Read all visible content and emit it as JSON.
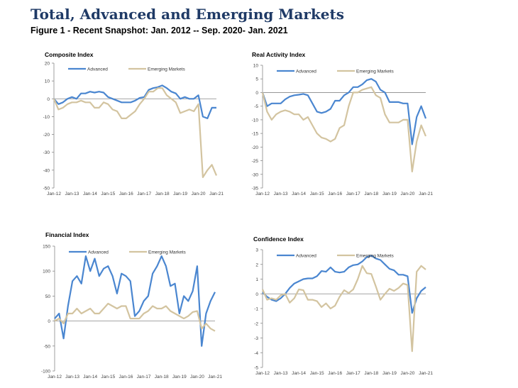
{
  "title": "Total, Advanced and Emerging Markets",
  "subtitle": "Figure 1 - Recent Snapshot: Jan. 2012 -- Sep. 2020- Jan. 2021",
  "colors": {
    "Advanced": "#4a86d0",
    "Emerging Markets": "#d3c4a0"
  },
  "chart_data": [
    {
      "type": "line",
      "title": "Composite Index",
      "x": [
        "2012-01",
        "2012-04",
        "2012-07",
        "2012-10",
        "2013-01",
        "2013-04",
        "2013-07",
        "2013-10",
        "2014-01",
        "2014-04",
        "2014-07",
        "2014-10",
        "2015-01",
        "2015-04",
        "2015-07",
        "2015-10",
        "2016-01",
        "2016-04",
        "2016-07",
        "2016-10",
        "2017-01",
        "2017-04",
        "2017-07",
        "2017-10",
        "2018-01",
        "2018-04",
        "2018-07",
        "2018-10",
        "2019-01",
        "2019-04",
        "2019-07",
        "2019-10",
        "2020-01",
        "2020-04",
        "2020-07",
        "2020-10",
        "2021-01"
      ],
      "xticks": [
        "Jan-12",
        "Jan-13",
        "Jan-14",
        "Jan-15",
        "Jan-16",
        "Jan-17",
        "Jan-18",
        "Jan-19",
        "Jan-20",
        "Jan-21"
      ],
      "yticks": [
        20,
        10,
        0,
        -10,
        -20,
        -30,
        -40,
        -50
      ],
      "ylim": [
        -50,
        20
      ],
      "legend": "top",
      "series": [
        {
          "name": "Advanced",
          "values": [
            0,
            -3,
            -2,
            0,
            1,
            0,
            3,
            3,
            4,
            3.5,
            4,
            3.5,
            1,
            0,
            -1,
            -2,
            -2,
            -2,
            -1,
            0.5,
            1,
            5,
            6,
            6.5,
            7.5,
            6,
            4,
            3,
            0,
            1,
            0,
            0,
            2,
            -10,
            -11,
            -5,
            -5
          ]
        },
        {
          "name": "Emerging Markets",
          "values": [
            0,
            -6,
            -5,
            -3,
            -2,
            -2,
            -1,
            -2,
            -2,
            -5,
            -5,
            -2,
            -3,
            -6,
            -7,
            -11,
            -11,
            -9,
            -7,
            -3,
            0,
            4,
            4,
            6,
            6,
            2,
            0,
            -2,
            -8,
            -7,
            -6,
            -7,
            -3,
            -44,
            -40,
            -37,
            -43
          ]
        }
      ]
    },
    {
      "type": "line",
      "title": "Real Activity Index",
      "x": [
        "2012-01",
        "2012-04",
        "2012-07",
        "2012-10",
        "2013-01",
        "2013-04",
        "2013-07",
        "2013-10",
        "2014-01",
        "2014-04",
        "2014-07",
        "2014-10",
        "2015-01",
        "2015-04",
        "2015-07",
        "2015-10",
        "2016-01",
        "2016-04",
        "2016-07",
        "2016-10",
        "2017-01",
        "2017-04",
        "2017-07",
        "2017-10",
        "2018-01",
        "2018-04",
        "2018-07",
        "2018-10",
        "2019-01",
        "2019-04",
        "2019-07",
        "2019-10",
        "2020-01",
        "2020-04",
        "2020-07",
        "2020-10",
        "2021-01"
      ],
      "xticks": [
        "Jan-12",
        "Jan-13",
        "Jan-14",
        "Jan-15",
        "Jan-16",
        "Jan-17",
        "Jan-18",
        "Jan-19",
        "Jan-20",
        "Jan-21"
      ],
      "yticks": [
        10,
        5,
        0,
        -5,
        -10,
        -15,
        -20,
        -25,
        -30,
        -35
      ],
      "ylim": [
        -35,
        10
      ],
      "legend": "top",
      "series": [
        {
          "name": "Advanced",
          "values": [
            0,
            -5,
            -4,
            -4,
            -4,
            -2.5,
            -1.5,
            -1,
            -0.8,
            -0.5,
            -1,
            -4,
            -7,
            -7.5,
            -7,
            -6,
            -3,
            -3,
            -1,
            0,
            2,
            2,
            3,
            4.5,
            5,
            4,
            1,
            0,
            -3.5,
            -3.5,
            -3.5,
            -4,
            -4,
            -19,
            -9,
            -5,
            -9.5
          ]
        },
        {
          "name": "Emerging Markets",
          "values": [
            0,
            -7,
            -10,
            -8,
            -7,
            -6.5,
            -7,
            -8,
            -8,
            -10,
            -9,
            -12,
            -15,
            -16.5,
            -17,
            -18,
            -17,
            -13,
            -12,
            -5,
            0,
            0,
            1,
            1.5,
            2,
            -1,
            -2,
            -8,
            -11,
            -11,
            -11,
            -10,
            -10,
            -29,
            -18,
            -12,
            -16
          ]
        }
      ]
    },
    {
      "type": "line",
      "title": "Financial Index",
      "x": [
        "2012-01",
        "2012-04",
        "2012-07",
        "2012-10",
        "2013-01",
        "2013-04",
        "2013-07",
        "2013-10",
        "2014-01",
        "2014-04",
        "2014-07",
        "2014-10",
        "2015-01",
        "2015-04",
        "2015-07",
        "2015-10",
        "2016-01",
        "2016-04",
        "2016-07",
        "2016-10",
        "2017-01",
        "2017-04",
        "2017-07",
        "2017-10",
        "2018-01",
        "2018-04",
        "2018-07",
        "2018-10",
        "2019-01",
        "2019-04",
        "2019-07",
        "2019-10",
        "2020-01",
        "2020-04",
        "2020-07",
        "2020-10",
        "2021-01"
      ],
      "xticks": [
        "Jan-12",
        "Jan-13",
        "Jan-14",
        "Jan-15",
        "Jan-16",
        "Jan-17",
        "Jan-18",
        "Jan-19",
        "Jan-20",
        "Jan-21"
      ],
      "yticks": [
        150,
        100,
        50,
        0,
        -50,
        -100
      ],
      "ylim": [
        -100,
        150
      ],
      "legend": "top",
      "series": [
        {
          "name": "Advanced",
          "values": [
            5,
            15,
            -35,
            30,
            80,
            90,
            75,
            130,
            100,
            125,
            90,
            105,
            110,
            90,
            55,
            95,
            90,
            80,
            10,
            20,
            40,
            50,
            95,
            110,
            130,
            110,
            70,
            75,
            15,
            50,
            40,
            60,
            110,
            -50,
            15,
            40,
            58
          ]
        },
        {
          "name": "Emerging Markets",
          "values": [
            0,
            5,
            -5,
            15,
            15,
            25,
            15,
            20,
            25,
            15,
            15,
            25,
            35,
            30,
            25,
            30,
            30,
            5,
            5,
            5,
            15,
            20,
            30,
            25,
            25,
            30,
            20,
            15,
            10,
            5,
            10,
            18,
            20,
            -15,
            -5,
            -15,
            -20
          ]
        }
      ]
    },
    {
      "type": "line",
      "title": "Confidence Index",
      "x": [
        "2012-01",
        "2012-04",
        "2012-07",
        "2012-10",
        "2013-01",
        "2013-04",
        "2013-07",
        "2013-10",
        "2014-01",
        "2014-04",
        "2014-07",
        "2014-10",
        "2015-01",
        "2015-04",
        "2015-07",
        "2015-10",
        "2016-01",
        "2016-04",
        "2016-07",
        "2016-10",
        "2017-01",
        "2017-04",
        "2017-07",
        "2017-10",
        "2018-01",
        "2018-04",
        "2018-07",
        "2018-10",
        "2019-01",
        "2019-04",
        "2019-07",
        "2019-10",
        "2020-01",
        "2020-04",
        "2020-07",
        "2020-10",
        "2021-01"
      ],
      "xticks": [
        "Jan-12",
        "Jan-13",
        "Jan-14",
        "Jan-15",
        "Jan-16",
        "Jan-17",
        "Jan-18",
        "Jan-19",
        "Jan-20",
        "Jan-21"
      ],
      "yticks": [
        3,
        2,
        1,
        0,
        -1,
        -2,
        -3,
        -4,
        -5
      ],
      "ylim": [
        -5,
        3
      ],
      "legend": "top",
      "series": [
        {
          "name": "Advanced",
          "values": [
            0.1,
            -0.2,
            -0.4,
            -0.5,
            -0.3,
            0,
            0.4,
            0.7,
            0.85,
            1,
            1.05,
            1.05,
            1.2,
            1.55,
            1.5,
            1.8,
            1.5,
            1.45,
            1.5,
            1.8,
            1.95,
            2,
            2.2,
            2.5,
            2.6,
            2.4,
            2.3,
            2,
            1.7,
            1.6,
            1.3,
            1.3,
            1.2,
            -1.3,
            -0.3,
            0.2,
            0.45
          ]
        },
        {
          "name": "Emerging Markets",
          "values": [
            0.3,
            -0.4,
            -0.3,
            -0.4,
            -0.1,
            0,
            -0.6,
            -0.3,
            0.3,
            0.25,
            -0.4,
            -0.4,
            -0.5,
            -0.9,
            -0.65,
            -1,
            -0.8,
            -0.2,
            0.25,
            0.05,
            0.3,
            1,
            1.9,
            1.4,
            1.35,
            0.5,
            -0.4,
            0,
            0.35,
            0.2,
            0.4,
            0.7,
            0.6,
            -3.9,
            1.5,
            1.9,
            1.65
          ]
        }
      ]
    }
  ]
}
